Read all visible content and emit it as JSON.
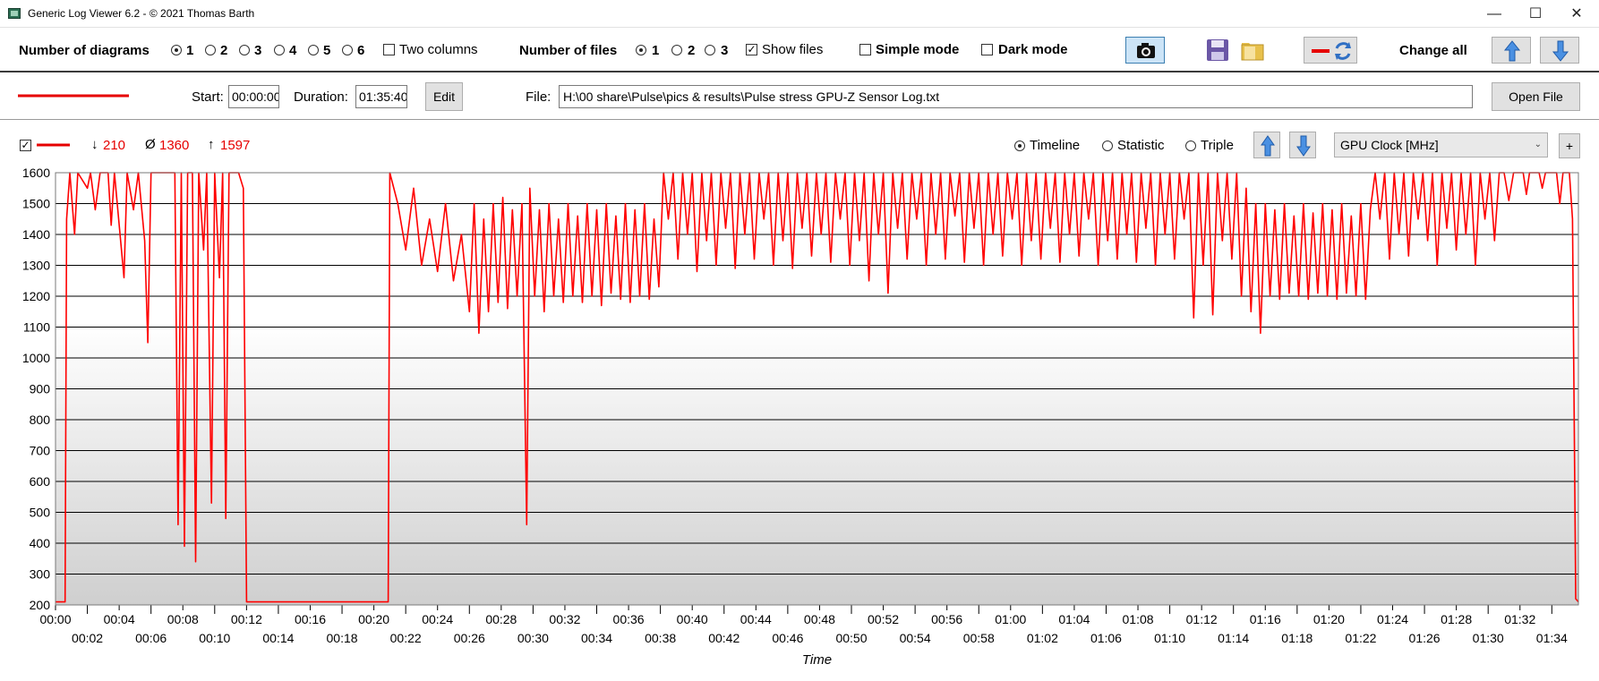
{
  "window": {
    "title": "Generic Log Viewer 6.2 - © 2021 Thomas Barth",
    "minimize": "—",
    "maximize": "☐",
    "close": "✕"
  },
  "toolbar": {
    "diagrams_label": "Number of diagrams",
    "diagram_options": [
      "1",
      "2",
      "3",
      "4",
      "5",
      "6"
    ],
    "diagrams_selected": "1",
    "two_columns_label": "Two columns",
    "two_columns_checked": false,
    "files_label": "Number of files",
    "file_options": [
      "1",
      "2",
      "3"
    ],
    "files_selected": "1",
    "show_files_label": "Show files",
    "show_files_checked": true,
    "simple_mode_label": "Simple mode",
    "simple_mode_checked": false,
    "dark_mode_label": "Dark mode",
    "dark_mode_checked": false,
    "icons": [
      "camera-icon",
      "save-icon",
      "folder-icon",
      "line-swap-icon",
      "arrow-up-icon",
      "arrow-down-icon"
    ],
    "change_all_label": "Change all"
  },
  "file_row": {
    "start_label": "Start:",
    "start_value": "00:00:00",
    "duration_label": "Duration:",
    "duration_value": "01:35:40",
    "edit_label": "Edit",
    "file_label": "File:",
    "file_path": "H:\\00 share\\Pulse\\pics & results\\Pulse stress GPU-Z Sensor Log.txt",
    "open_file_label": "Open File",
    "line_color": "#ff0000"
  },
  "series_row": {
    "visible_checked": true,
    "min_symbol": "↓",
    "min_value": "210",
    "avg_symbol": "Ø",
    "avg_value": "1360",
    "max_symbol": "↑",
    "max_value": "1597",
    "views": [
      "Timeline",
      "Statistic",
      "Triple"
    ],
    "view_selected": "Timeline",
    "channel": "GPU Clock [MHz]",
    "add_label": "+"
  },
  "chart_data": {
    "type": "line",
    "xlabel": "Time",
    "ylabel": "",
    "ylim": [
      200,
      1600
    ],
    "yticks": [
      200,
      300,
      400,
      500,
      600,
      700,
      800,
      900,
      1000,
      1100,
      1200,
      1300,
      1400,
      1500,
      1600
    ],
    "xlim_minutes": [
      0,
      95.67
    ],
    "xtick_labels_top": [
      "00:00",
      "00:04",
      "00:08",
      "00:12",
      "00:16",
      "00:20",
      "00:24",
      "00:28",
      "00:32",
      "00:36",
      "00:40",
      "00:44",
      "00:48",
      "00:52",
      "00:56",
      "01:00",
      "01:04",
      "01:08",
      "01:12",
      "01:16",
      "01:20",
      "01:24",
      "01:28",
      "01:32"
    ],
    "xtick_labels_bottom": [
      "00:02",
      "00:06",
      "00:10",
      "00:14",
      "00:18",
      "00:22",
      "00:26",
      "00:30",
      "00:34",
      "00:38",
      "00:42",
      "00:46",
      "00:50",
      "00:54",
      "00:58",
      "01:02",
      "01:06",
      "01:10",
      "01:14",
      "01:18",
      "01:22",
      "01:26",
      "01:30",
      "01:34"
    ],
    "grid": true,
    "line_color": "#ff0000",
    "series": [
      {
        "values": [
          [
            0,
            210
          ],
          [
            0.6,
            210
          ],
          [
            0.7,
            1450
          ],
          [
            0.9,
            1600
          ],
          [
            1.2,
            1400
          ],
          [
            1.4,
            1600
          ],
          [
            2.0,
            1550
          ],
          [
            2.2,
            1600
          ],
          [
            2.5,
            1480
          ],
          [
            2.8,
            1600
          ],
          [
            3.3,
            1600
          ],
          [
            3.5,
            1430
          ],
          [
            3.7,
            1600
          ],
          [
            4.3,
            1260
          ],
          [
            4.5,
            1600
          ],
          [
            4.9,
            1480
          ],
          [
            5.2,
            1600
          ],
          [
            5.6,
            1380
          ],
          [
            5.8,
            1050
          ],
          [
            6.0,
            1600
          ],
          [
            7.5,
            1600
          ],
          [
            7.7,
            460
          ],
          [
            7.9,
            1600
          ],
          [
            8.1,
            390
          ],
          [
            8.3,
            1600
          ],
          [
            8.6,
            1600
          ],
          [
            8.8,
            340
          ],
          [
            9.0,
            1600
          ],
          [
            9.3,
            1350
          ],
          [
            9.5,
            1600
          ],
          [
            9.8,
            530
          ],
          [
            10.0,
            1600
          ],
          [
            10.3,
            1260
          ],
          [
            10.5,
            1600
          ],
          [
            10.7,
            480
          ],
          [
            10.9,
            1600
          ],
          [
            11.5,
            1600
          ],
          [
            11.8,
            1550
          ],
          [
            12.0,
            210
          ],
          [
            20.9,
            210
          ],
          [
            21.0,
            1600
          ],
          [
            21.5,
            1500
          ],
          [
            22.0,
            1350
          ],
          [
            22.5,
            1550
          ],
          [
            23.0,
            1300
          ],
          [
            23.5,
            1450
          ],
          [
            24.0,
            1280
          ],
          [
            24.5,
            1500
          ],
          [
            25.0,
            1250
          ],
          [
            25.5,
            1400
          ],
          [
            26.0,
            1150
          ],
          [
            26.3,
            1500
          ],
          [
            26.6,
            1080
          ],
          [
            26.9,
            1450
          ],
          [
            27.2,
            1150
          ],
          [
            27.5,
            1500
          ],
          [
            27.8,
            1180
          ],
          [
            28.1,
            1520
          ],
          [
            28.4,
            1160
          ],
          [
            28.7,
            1480
          ],
          [
            29.0,
            1200
          ],
          [
            29.3,
            1500
          ],
          [
            29.6,
            460
          ],
          [
            29.8,
            1550
          ],
          [
            30.1,
            1200
          ],
          [
            30.4,
            1480
          ],
          [
            30.7,
            1150
          ],
          [
            31.0,
            1500
          ],
          [
            31.3,
            1200
          ],
          [
            31.6,
            1450
          ],
          [
            31.9,
            1180
          ],
          [
            32.2,
            1500
          ],
          [
            32.5,
            1200
          ],
          [
            32.8,
            1460
          ],
          [
            33.1,
            1180
          ],
          [
            33.4,
            1500
          ],
          [
            33.7,
            1200
          ],
          [
            34.0,
            1480
          ],
          [
            34.3,
            1170
          ],
          [
            34.6,
            1500
          ],
          [
            34.9,
            1210
          ],
          [
            35.2,
            1460
          ],
          [
            35.5,
            1190
          ],
          [
            35.8,
            1500
          ],
          [
            36.1,
            1180
          ],
          [
            36.4,
            1480
          ],
          [
            36.7,
            1200
          ],
          [
            37.0,
            1500
          ],
          [
            37.3,
            1190
          ],
          [
            37.6,
            1450
          ],
          [
            37.9,
            1230
          ],
          [
            38.2,
            1600
          ],
          [
            38.5,
            1450
          ],
          [
            38.8,
            1600
          ],
          [
            39.1,
            1320
          ],
          [
            39.4,
            1600
          ],
          [
            39.7,
            1400
          ],
          [
            40.0,
            1600
          ],
          [
            40.3,
            1280
          ],
          [
            40.6,
            1600
          ],
          [
            40.9,
            1380
          ],
          [
            41.2,
            1600
          ],
          [
            41.5,
            1300
          ],
          [
            41.8,
            1600
          ],
          [
            42.1,
            1420
          ],
          [
            42.4,
            1600
          ],
          [
            42.7,
            1290
          ],
          [
            43.0,
            1600
          ],
          [
            43.3,
            1400
          ],
          [
            43.6,
            1600
          ],
          [
            43.9,
            1320
          ],
          [
            44.2,
            1600
          ],
          [
            44.5,
            1450
          ],
          [
            44.8,
            1600
          ],
          [
            45.1,
            1300
          ],
          [
            45.4,
            1600
          ],
          [
            45.7,
            1380
          ],
          [
            46.0,
            1600
          ],
          [
            46.3,
            1290
          ],
          [
            46.6,
            1600
          ],
          [
            46.9,
            1420
          ],
          [
            47.2,
            1600
          ],
          [
            47.5,
            1330
          ],
          [
            47.8,
            1600
          ],
          [
            48.1,
            1400
          ],
          [
            48.4,
            1600
          ],
          [
            48.7,
            1310
          ],
          [
            49.0,
            1600
          ],
          [
            49.3,
            1450
          ],
          [
            49.6,
            1600
          ],
          [
            49.9,
            1300
          ],
          [
            50.2,
            1600
          ],
          [
            50.5,
            1380
          ],
          [
            50.8,
            1600
          ],
          [
            51.1,
            1250
          ],
          [
            51.4,
            1600
          ],
          [
            51.7,
            1400
          ],
          [
            52.0,
            1600
          ],
          [
            52.3,
            1210
          ],
          [
            52.6,
            1600
          ],
          [
            52.9,
            1420
          ],
          [
            53.2,
            1600
          ],
          [
            53.5,
            1320
          ],
          [
            53.8,
            1600
          ],
          [
            54.1,
            1450
          ],
          [
            54.4,
            1600
          ],
          [
            54.7,
            1300
          ],
          [
            55.0,
            1600
          ],
          [
            55.3,
            1400
          ],
          [
            55.6,
            1600
          ],
          [
            55.9,
            1320
          ],
          [
            56.2,
            1600
          ],
          [
            56.5,
            1460
          ],
          [
            56.8,
            1600
          ],
          [
            57.1,
            1310
          ],
          [
            57.4,
            1600
          ],
          [
            57.7,
            1420
          ],
          [
            58.0,
            1600
          ],
          [
            58.3,
            1300
          ],
          [
            58.6,
            1600
          ],
          [
            58.9,
            1400
          ],
          [
            59.2,
            1600
          ],
          [
            59.5,
            1330
          ],
          [
            59.8,
            1600
          ],
          [
            60.1,
            1450
          ],
          [
            60.4,
            1600
          ],
          [
            60.7,
            1300
          ],
          [
            61.0,
            1600
          ],
          [
            61.3,
            1380
          ],
          [
            61.6,
            1600
          ],
          [
            61.9,
            1320
          ],
          [
            62.2,
            1600
          ],
          [
            62.5,
            1420
          ],
          [
            62.8,
            1600
          ],
          [
            63.1,
            1310
          ],
          [
            63.4,
            1600
          ],
          [
            63.7,
            1400
          ],
          [
            64.0,
            1600
          ],
          [
            64.3,
            1330
          ],
          [
            64.6,
            1600
          ],
          [
            64.9,
            1450
          ],
          [
            65.2,
            1600
          ],
          [
            65.5,
            1300
          ],
          [
            65.8,
            1600
          ],
          [
            66.1,
            1380
          ],
          [
            66.4,
            1600
          ],
          [
            66.7,
            1320
          ],
          [
            67.0,
            1600
          ],
          [
            67.3,
            1400
          ],
          [
            67.6,
            1600
          ],
          [
            67.9,
            1310
          ],
          [
            68.2,
            1600
          ],
          [
            68.5,
            1420
          ],
          [
            68.8,
            1600
          ],
          [
            69.1,
            1300
          ],
          [
            69.4,
            1600
          ],
          [
            69.7,
            1400
          ],
          [
            70.0,
            1600
          ],
          [
            70.3,
            1320
          ],
          [
            70.6,
            1600
          ],
          [
            70.9,
            1450
          ],
          [
            71.2,
            1600
          ],
          [
            71.5,
            1130
          ],
          [
            71.8,
            1600
          ],
          [
            72.1,
            1300
          ],
          [
            72.4,
            1600
          ],
          [
            72.7,
            1140
          ],
          [
            73.0,
            1600
          ],
          [
            73.3,
            1380
          ],
          [
            73.6,
            1600
          ],
          [
            73.9,
            1320
          ],
          [
            74.2,
            1600
          ],
          [
            74.5,
            1200
          ],
          [
            74.8,
            1550
          ],
          [
            75.1,
            1150
          ],
          [
            75.4,
            1500
          ],
          [
            75.7,
            1080
          ],
          [
            76.0,
            1500
          ],
          [
            76.3,
            1200
          ],
          [
            76.6,
            1480
          ],
          [
            76.9,
            1190
          ],
          [
            77.2,
            1500
          ],
          [
            77.5,
            1210
          ],
          [
            77.8,
            1460
          ],
          [
            78.1,
            1200
          ],
          [
            78.4,
            1500
          ],
          [
            78.7,
            1190
          ],
          [
            79.0,
            1470
          ],
          [
            79.3,
            1210
          ],
          [
            79.6,
            1500
          ],
          [
            79.9,
            1200
          ],
          [
            80.2,
            1480
          ],
          [
            80.5,
            1190
          ],
          [
            80.8,
            1500
          ],
          [
            81.1,
            1210
          ],
          [
            81.4,
            1460
          ],
          [
            81.7,
            1200
          ],
          [
            82.0,
            1500
          ],
          [
            82.3,
            1190
          ],
          [
            82.6,
            1480
          ],
          [
            82.9,
            1600
          ],
          [
            83.2,
            1450
          ],
          [
            83.5,
            1600
          ],
          [
            83.8,
            1320
          ],
          [
            84.1,
            1600
          ],
          [
            84.4,
            1400
          ],
          [
            84.7,
            1600
          ],
          [
            85.0,
            1330
          ],
          [
            85.3,
            1600
          ],
          [
            85.6,
            1450
          ],
          [
            85.9,
            1600
          ],
          [
            86.2,
            1380
          ],
          [
            86.5,
            1600
          ],
          [
            86.8,
            1300
          ],
          [
            87.1,
            1600
          ],
          [
            87.4,
            1420
          ],
          [
            87.7,
            1600
          ],
          [
            88.0,
            1350
          ],
          [
            88.3,
            1600
          ],
          [
            88.6,
            1400
          ],
          [
            88.9,
            1600
          ],
          [
            89.2,
            1300
          ],
          [
            89.5,
            1600
          ],
          [
            89.8,
            1450
          ],
          [
            90.1,
            1600
          ],
          [
            90.4,
            1380
          ],
          [
            90.7,
            1600
          ],
          [
            91.0,
            1600
          ],
          [
            91.3,
            1510
          ],
          [
            91.6,
            1600
          ],
          [
            92.2,
            1600
          ],
          [
            92.4,
            1530
          ],
          [
            92.6,
            1600
          ],
          [
            93.2,
            1600
          ],
          [
            93.4,
            1550
          ],
          [
            93.6,
            1600
          ],
          [
            94.3,
            1600
          ],
          [
            94.5,
            1500
          ],
          [
            94.7,
            1600
          ],
          [
            95.1,
            1600
          ],
          [
            95.3,
            1450
          ],
          [
            95.5,
            220
          ],
          [
            95.67,
            210
          ]
        ]
      }
    ]
  }
}
